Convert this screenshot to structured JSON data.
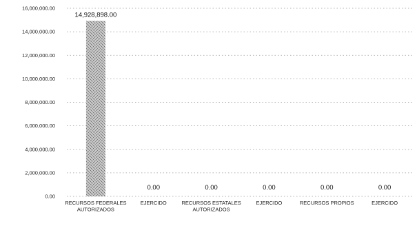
{
  "chart_data": {
    "type": "bar",
    "title": "",
    "xlabel": "",
    "ylabel": "",
    "categories": [
      [
        "RECURSOS FEDERALES",
        "AUTORIZADOS"
      ],
      [
        "EJERCIDO"
      ],
      [
        "RECURSOS ESTATALES",
        "AUTORIZADOS"
      ],
      [
        "EJERCIDO"
      ],
      [
        "RECURSOS PROPIOS"
      ],
      [
        "EJERCIDO"
      ]
    ],
    "values": [
      14928898.0,
      0.0,
      0.0,
      0.0,
      0.0,
      0.0
    ],
    "data_labels": [
      "14,928,898.00",
      "0.00",
      "0.00",
      "0.00",
      "0.00",
      "0.00"
    ],
    "ylim": [
      0,
      16000000
    ],
    "yticks": [
      0,
      2000000,
      4000000,
      6000000,
      8000000,
      10000000,
      12000000,
      14000000,
      16000000
    ],
    "ytick_labels": [
      "0.00",
      "2,000,000.00",
      "4,000,000.00",
      "6,000,000.00",
      "8,000,000.00",
      "10,000,000.00",
      "12,000,000.00",
      "14,000,000.00",
      "16,000,000.00"
    ],
    "grid": true,
    "legend": "none",
    "bar_color": "#c4c4c4",
    "bar_pattern": "stippled"
  }
}
